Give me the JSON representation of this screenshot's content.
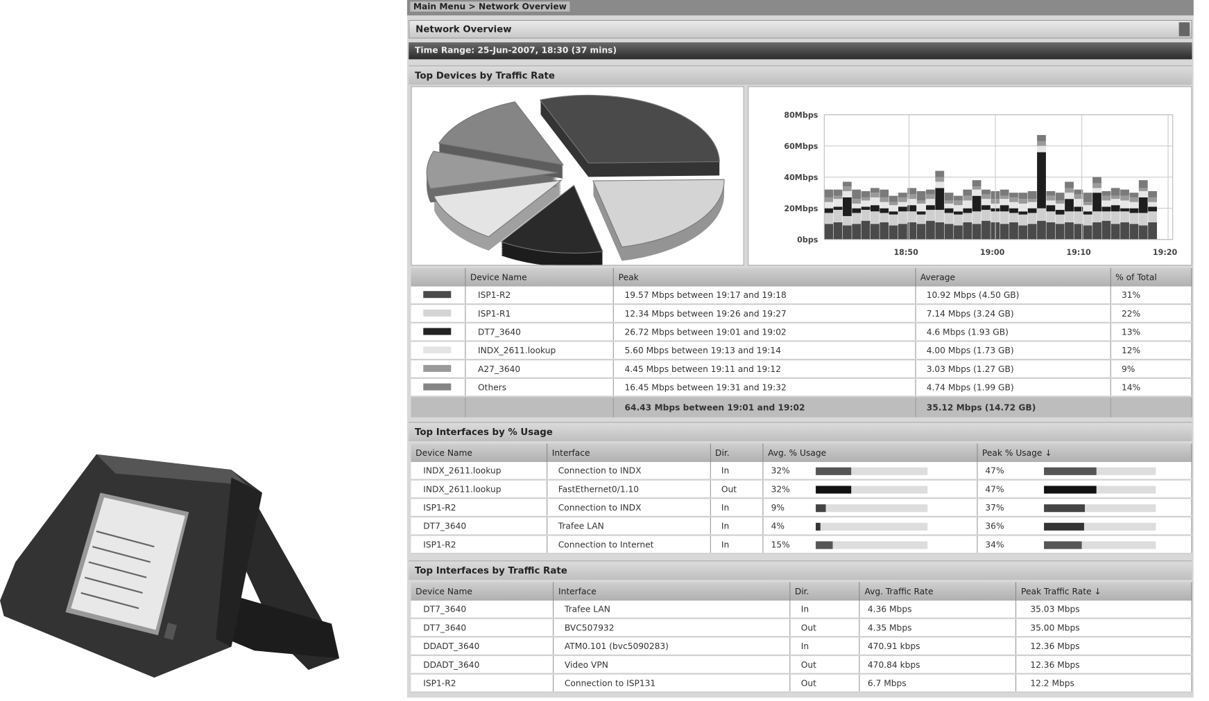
{
  "breadcrumb": "Main Menu > Network Overview",
  "page_title": "Network Overview",
  "time_range": "Time Range: 25-Jun-2007, 18:30 (37 mins)",
  "devices_section": {
    "title": "Top Devices by Traffic Rate",
    "columns": [
      "",
      "Device Name",
      "Peak",
      "Average",
      "% of Total"
    ],
    "rows": [
      {
        "color": "#4a4a4a",
        "device": "ISP1-R2",
        "peak": "19.57 Mbps between 19:17 and 19:18",
        "average": "10.92 Mbps (4.50 GB)",
        "percent": "31%"
      },
      {
        "color": "#d4d4d4",
        "device": "ISP1-R1",
        "peak": "12.34 Mbps between 19:26 and 19:27",
        "average": "7.14 Mbps (3.24 GB)",
        "percent": "22%"
      },
      {
        "color": "#222222",
        "device": "DT7_3640",
        "peak": "26.72 Mbps between 19:01 and 19:02",
        "average": "4.6 Mbps (1.93 GB)",
        "percent": "13%"
      },
      {
        "color": "#e4e4e4",
        "device": "INDX_2611.lookup",
        "peak": "5.60 Mbps between 19:13 and 19:14",
        "average": "4.00 Mbps (1.73 GB)",
        "percent": "12%"
      },
      {
        "color": "#9a9a9a",
        "device": "A27_3640",
        "peak": "4.45 Mbps between 19:11 and 19:12",
        "average": "3.03 Mbps (1.27 GB)",
        "percent": "9%"
      },
      {
        "color": "#858585",
        "device": "Others",
        "peak": "16.45 Mbps between 19:31 and 19:32",
        "average": "4.74 Mbps (1.99 GB)",
        "percent": "14%"
      }
    ],
    "total": {
      "peak": "64.43 Mbps between 19:01 and 19:02",
      "average": "35.12 Mbps (14.72 GB)"
    }
  },
  "chart_data": [
    {
      "type": "pie",
      "categories": [
        "ISP1-R2",
        "ISP1-R1",
        "DT7_3640",
        "INDX_2611.lookup",
        "A27_3640",
        "Others"
      ],
      "values": [
        31,
        22,
        13,
        12,
        9,
        14
      ],
      "colors": [
        "#4a4a4a",
        "#d4d4d4",
        "#2a2a2a",
        "#e4e4e4",
        "#9a9a9a",
        "#858585"
      ],
      "style": "3d-exploded"
    },
    {
      "type": "bar",
      "stacked": true,
      "yticks": [
        "0bps",
        "20Mbps",
        "40Mbps",
        "60Mbps",
        "80Mbps"
      ],
      "ylim": [
        0,
        80
      ],
      "xticks": [
        "18:50",
        "19:00",
        "19:10",
        "19:20"
      ],
      "grid": true,
      "series": [
        {
          "color": "#4a4a4a",
          "values": [
            10,
            11,
            9,
            10,
            12,
            10,
            11,
            9,
            10,
            11,
            10,
            12,
            11,
            10,
            9,
            11,
            10,
            12,
            11,
            10,
            11,
            9,
            10,
            12,
            11,
            10,
            11,
            10,
            9,
            11,
            12,
            10,
            11,
            10,
            9,
            11
          ]
        },
        {
          "color": "#cfcfcf",
          "values": [
            7,
            8,
            6,
            7,
            7,
            8,
            6,
            7,
            8,
            7,
            6,
            7,
            8,
            7,
            7,
            6,
            8,
            7,
            7,
            8,
            6,
            7,
            7,
            8,
            7,
            6,
            7,
            8,
            7,
            7,
            6,
            8,
            7,
            7,
            8,
            7
          ]
        },
        {
          "color": "#1e1e1e",
          "values": [
            3,
            2,
            12,
            3,
            2,
            4,
            3,
            2,
            3,
            4,
            2,
            3,
            14,
            3,
            2,
            3,
            10,
            3,
            2,
            4,
            3,
            2,
            3,
            36,
            4,
            3,
            8,
            3,
            2,
            12,
            3,
            4,
            2,
            3,
            10,
            3
          ]
        },
        {
          "color": "#e6e6e6",
          "values": [
            4,
            5,
            4,
            3,
            4,
            5,
            4,
            4,
            3,
            4,
            5,
            4,
            4,
            3,
            4,
            5,
            4,
            4,
            3,
            4,
            4,
            5,
            4,
            4,
            3,
            4,
            4,
            5,
            4,
            3,
            4,
            4,
            5,
            4,
            4,
            3
          ]
        },
        {
          "color": "#9a9a9a",
          "values": [
            3,
            2,
            3,
            3,
            2,
            3,
            3,
            2,
            3,
            3,
            2,
            3,
            3,
            2,
            3,
            3,
            2,
            3,
            3,
            2,
            3,
            3,
            2,
            3,
            3,
            2,
            3,
            3,
            2,
            3,
            3,
            2,
            3,
            3,
            2,
            3
          ]
        },
        {
          "color": "#7a7a7a",
          "values": [
            5,
            4,
            3,
            6,
            4,
            3,
            5,
            4,
            3,
            4,
            6,
            3,
            4,
            5,
            3,
            4,
            4,
            3,
            5,
            4,
            3,
            4,
            5,
            4,
            3,
            5,
            4,
            3,
            6,
            4,
            3,
            5,
            4,
            3,
            5,
            4
          ]
        }
      ]
    }
  ],
  "usage_section": {
    "title": "Top Interfaces by % Usage",
    "columns": [
      "Device Name",
      "Interface",
      "Dir.",
      "Avg. % Usage",
      "Peak % Usage ↓"
    ],
    "rows": [
      {
        "device": "INDX_2611.lookup",
        "interface": "Connection to INDX",
        "dir": "In",
        "avg": "32%",
        "avg_value": 32,
        "peak": "47%",
        "peak_value": 47,
        "color": "#555555"
      },
      {
        "device": "INDX_2611.lookup",
        "interface": "FastEthernet0/1.10",
        "dir": "Out",
        "avg": "32%",
        "avg_value": 32,
        "peak": "47%",
        "peak_value": 47,
        "color": "#111111"
      },
      {
        "device": "ISP1-R2",
        "interface": "Connection to INDX",
        "dir": "In",
        "avg": "9%",
        "avg_value": 9,
        "peak": "37%",
        "peak_value": 37,
        "color": "#444444"
      },
      {
        "device": "DT7_3640",
        "interface": "Trafee LAN",
        "dir": "In",
        "avg": "4%",
        "avg_value": 4,
        "peak": "36%",
        "peak_value": 36,
        "color": "#333333"
      },
      {
        "device": "ISP1-R2",
        "interface": "Connection to Internet",
        "dir": "In",
        "avg": "15%",
        "avg_value": 15,
        "peak": "34%",
        "peak_value": 34,
        "color": "#555555"
      }
    ]
  },
  "traffic_section": {
    "title": "Top Interfaces by Traffic Rate",
    "columns": [
      "Device Name",
      "Interface",
      "Dir.",
      "Avg. Traffic Rate",
      "Peak Traffic Rate ↓"
    ],
    "rows": [
      {
        "device": "DT7_3640",
        "interface": "Trafee LAN",
        "dir": "In",
        "avg": "4.36 Mbps",
        "peak": "35.03 Mbps"
      },
      {
        "device": "DT7_3640",
        "interface": "BVC507932",
        "dir": "Out",
        "avg": "4.35 Mbps",
        "peak": "35.00 Mbps"
      },
      {
        "device": "DDADT_3640",
        "interface": "ATM0.101 (bvc5090283)",
        "dir": "In",
        "avg": "470.91 kbps",
        "peak": "12.36 Mbps"
      },
      {
        "device": "DDADT_3640",
        "interface": "Video VPN",
        "dir": "Out",
        "avg": "470.84 kbps",
        "peak": "12.36 Mbps"
      },
      {
        "device": "ISP1-R2",
        "interface": "Connection to ISP131",
        "dir": "Out",
        "avg": "6.7 Mbps",
        "peak": "12.2 Mbps"
      }
    ]
  }
}
